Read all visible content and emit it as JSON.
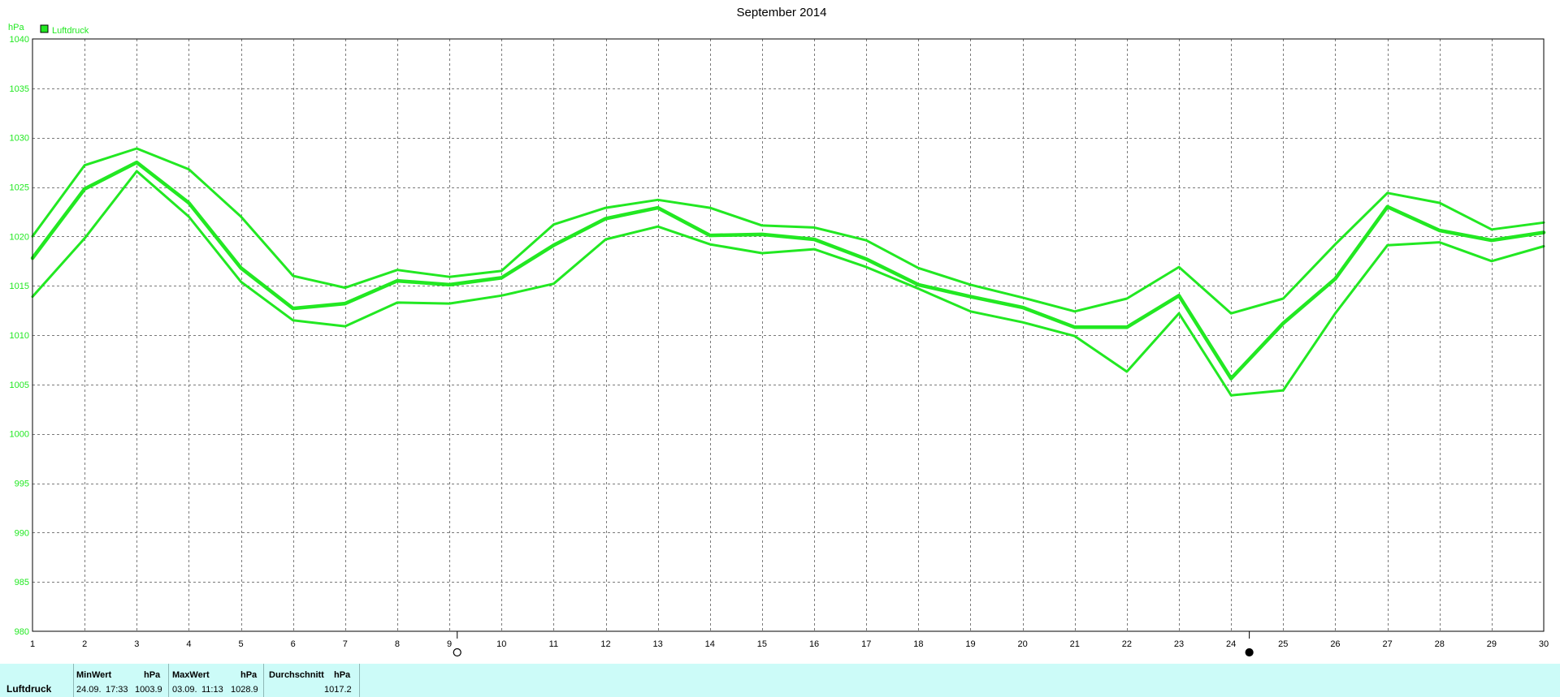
{
  "chart_data": {
    "type": "line",
    "title": "September 2014",
    "ylabel": "hPa",
    "legend": {
      "label": "Luftdruck",
      "placement": "top-left",
      "color": "#22e822"
    },
    "ylim": [
      980,
      1040
    ],
    "yticks": [
      980,
      985,
      990,
      995,
      1000,
      1005,
      1010,
      1015,
      1020,
      1025,
      1030,
      1035,
      1040
    ],
    "x": [
      1,
      2,
      3,
      4,
      5,
      6,
      7,
      8,
      9,
      10,
      11,
      12,
      13,
      14,
      15,
      16,
      17,
      18,
      19,
      20,
      21,
      22,
      23,
      24,
      25,
      26,
      27,
      28,
      29,
      30
    ],
    "grid": true,
    "line_color": "#22e822",
    "series": [
      {
        "values": [
          1020.0,
          1027.2,
          1028.9,
          1026.8,
          1022.0,
          1016.0,
          1014.8,
          1016.6,
          1015.9,
          1016.5,
          1021.2,
          1022.9,
          1023.7,
          1022.9,
          1021.1,
          1020.9,
          1019.6,
          1016.8,
          1015.1,
          1013.8,
          1012.4,
          1013.7,
          1016.9,
          1012.2,
          1013.7,
          1019.2,
          1024.4,
          1023.4,
          1020.7,
          1021.4
        ]
      },
      {
        "values": [
          1017.8,
          1024.8,
          1027.5,
          1023.4,
          1016.8,
          1012.7,
          1013.2,
          1015.5,
          1015.1,
          1015.8,
          1019.1,
          1021.8,
          1022.9,
          1020.1,
          1020.2,
          1019.7,
          1017.7,
          1015.1,
          1013.9,
          1012.8,
          1010.8,
          1010.8,
          1014.0,
          1005.6,
          1011.2,
          1015.7,
          1023.0,
          1020.6,
          1019.6,
          1020.4
        ]
      },
      {
        "values": [
          1013.9,
          1019.8,
          1026.6,
          1022.0,
          1015.4,
          1011.5,
          1010.9,
          1013.3,
          1013.2,
          1014.0,
          1015.2,
          1019.7,
          1021.0,
          1019.2,
          1018.3,
          1018.7,
          1016.9,
          1014.7,
          1012.4,
          1011.3,
          1009.9,
          1006.3,
          1012.2,
          1003.9,
          1004.4,
          1012.2,
          1019.1,
          1019.4,
          1017.5,
          1019.0
        ]
      }
    ],
    "moon_phases": [
      {
        "x": 9.15,
        "phase": "full-moon"
      },
      {
        "x": 24.35,
        "phase": "new-moon"
      }
    ]
  },
  "stats": {
    "series_name": "Luftdruck",
    "min": {
      "label": "MinWert",
      "unit": "hPa",
      "date": "24.09.",
      "time": "17:33",
      "value": "1003.9"
    },
    "max": {
      "label": "MaxWert",
      "unit": "hPa",
      "date": "03.09.",
      "time": "11:13",
      "value": "1028.9"
    },
    "avg": {
      "label": "Durchschnitt",
      "unit": "hPa",
      "value": "1017.2"
    }
  }
}
